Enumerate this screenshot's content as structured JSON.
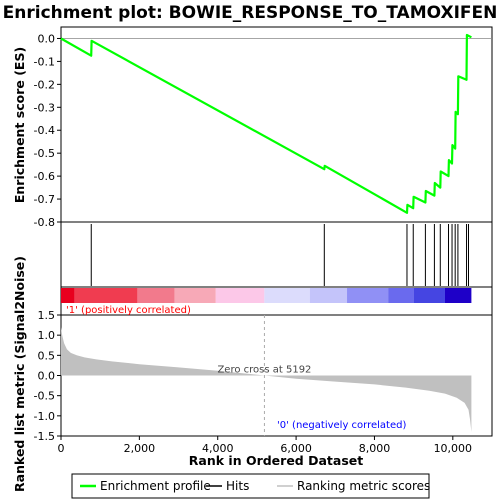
{
  "chart_data": {
    "type": "line",
    "title": "Enrichment plot: BOWIE_RESPONSE_TO_TAMOXIFEN",
    "xlabel": "Rank in Ordered Dataset",
    "xlim": [
      0,
      11000
    ],
    "x_ticks": [
      0,
      2000,
      4000,
      6000,
      8000,
      10000
    ],
    "x_tick_labels": [
      "0",
      "2,000",
      "4,000",
      "6,000",
      "8,000",
      "10,000"
    ],
    "n_genes": 10474,
    "es_panel": {
      "ylabel": "Enrichment score (ES)",
      "ylim": [
        -0.8,
        0.05
      ],
      "y_ticks": [
        0.0,
        -0.1,
        -0.2,
        -0.3,
        -0.4,
        -0.5,
        -0.6,
        -0.7,
        -0.8
      ],
      "y_tick_labels": [
        "0.0",
        "-0.1",
        "-0.2",
        "-0.3",
        "-0.4",
        "-0.5",
        "-0.6",
        "-0.7",
        "-0.8"
      ],
      "series": [
        {
          "name": "Enrichment profile",
          "color": "#00ff00",
          "x": [
            0,
            772,
            780,
            6720,
            6730,
            8830,
            8840,
            8990,
            9000,
            9300,
            9310,
            9530,
            9540,
            9680,
            9690,
            9890,
            9900,
            9980,
            9990,
            10060,
            10070,
            10130,
            10140,
            10350,
            10360,
            10474
          ],
          "y": [
            0.0,
            -0.075,
            -0.01,
            -0.57,
            -0.555,
            -0.76,
            -0.725,
            -0.74,
            -0.69,
            -0.715,
            -0.665,
            -0.685,
            -0.63,
            -0.65,
            -0.58,
            -0.6,
            -0.53,
            -0.545,
            -0.465,
            -0.48,
            -0.32,
            -0.33,
            -0.165,
            -0.18,
            0.015,
            0.005
          ]
        }
      ]
    },
    "hits": {
      "name": "Hits",
      "color": "#000000",
      "x": [
        772,
        6720,
        8830,
        8990,
        9300,
        9530,
        9680,
        9890,
        9980,
        10060,
        10130,
        10350,
        10400
      ]
    },
    "metric_panel": {
      "ylabel": "Ranked list metric (Signal2Noise)",
      "ylim": [
        -1.5,
        1.5
      ],
      "y_ticks": [
        1.5,
        1.0,
        0.5,
        0.0,
        -0.5,
        -1.0,
        -1.5
      ],
      "y_tick_labels": [
        "1.5",
        "1.0",
        "0.5",
        "0.0",
        "-0.5",
        "-1.0",
        "-1.5"
      ],
      "series_name": "Ranking metric scores",
      "color": "#c0c0c0",
      "x": [
        0,
        30,
        80,
        150,
        250,
        400,
        600,
        900,
        1300,
        2000,
        3000,
        4000,
        5192,
        6000,
        7000,
        8000,
        8800,
        9400,
        9800,
        10100,
        10300,
        10400,
        10440,
        10474
      ],
      "y": [
        1.2,
        1.0,
        0.8,
        0.65,
        0.56,
        0.5,
        0.45,
        0.4,
        0.35,
        0.28,
        0.2,
        0.12,
        0.0,
        -0.08,
        -0.15,
        -0.22,
        -0.3,
        -0.38,
        -0.45,
        -0.55,
        -0.68,
        -0.85,
        -1.1,
        -1.4
      ],
      "zero_cross_label": "Zero cross at 5192",
      "zero_cross_x": 5192,
      "positive_label": "'1' (positively correlated)",
      "negative_label": "'0' (negatively correlated)",
      "positive_color": "#ff0000",
      "negative_color": "#0000ff"
    },
    "heat_bar": {
      "segments": [
        {
          "x0": 0,
          "x1": 350,
          "color": "#e8001e"
        },
        {
          "x0": 350,
          "x1": 1950,
          "color": "#f03c50"
        },
        {
          "x0": 1950,
          "x1": 2900,
          "color": "#f27a8c"
        },
        {
          "x0": 2900,
          "x1": 3950,
          "color": "#f7a9b7"
        },
        {
          "x0": 3950,
          "x1": 5190,
          "color": "#fcc8e8"
        },
        {
          "x0": 5190,
          "x1": 6350,
          "color": "#dcdcfc"
        },
        {
          "x0": 6350,
          "x1": 7300,
          "color": "#c4c4fa"
        },
        {
          "x0": 7300,
          "x1": 8350,
          "color": "#9090f5"
        },
        {
          "x0": 8350,
          "x1": 9000,
          "color": "#6a6aee"
        },
        {
          "x0": 9000,
          "x1": 9800,
          "color": "#4545e2"
        },
        {
          "x0": 9800,
          "x1": 10474,
          "color": "#1e00c8"
        }
      ]
    },
    "legend": {
      "placement": "bottom",
      "items": [
        {
          "label": "Enrichment profile",
          "color": "#00ff00"
        },
        {
          "label": "Hits",
          "color": "#000000"
        },
        {
          "label": "Ranking metric scores",
          "color": "#c0c0c0"
        }
      ]
    }
  }
}
